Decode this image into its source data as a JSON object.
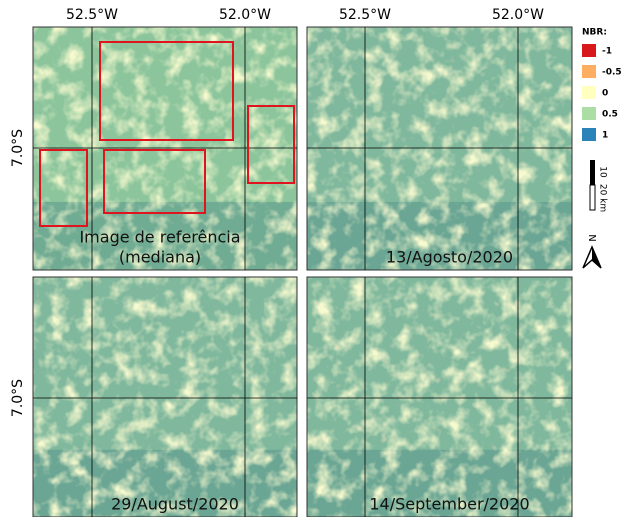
{
  "axes": {
    "x_labels": [
      "52.5°W",
      "52.0°W"
    ],
    "y_label": "7.0°S"
  },
  "panels": [
    {
      "caption": [
        "Image de referência",
        "(mediana)"
      ]
    },
    {
      "caption": [
        "13/Agosto/2020"
      ]
    },
    {
      "caption": [
        "29/August/2020"
      ]
    },
    {
      "caption": [
        "14/September/2020"
      ]
    }
  ],
  "legend": {
    "title": "NBR:",
    "items": [
      {
        "label": "-1",
        "color": "#d7191c"
      },
      {
        "label": "-0.5",
        "color": "#fdae61"
      },
      {
        "label": "0",
        "color": "#ffffbf"
      },
      {
        "label": "0.5",
        "color": "#abdda4"
      },
      {
        "label": "1",
        "color": "#2b83ba"
      }
    ]
  },
  "scale_bar": {
    "labels": [
      "10",
      "20 km"
    ]
  },
  "north": "N"
}
